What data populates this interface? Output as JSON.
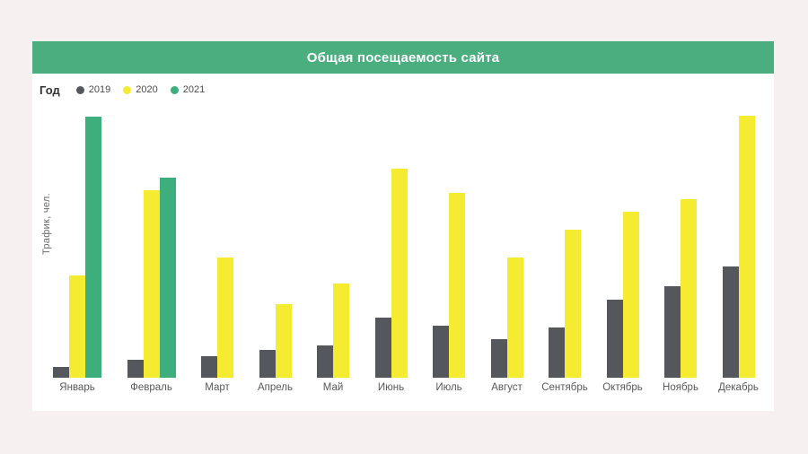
{
  "page": {
    "background": "#f6f1f0"
  },
  "card": {
    "title": "Общая посещаемость сайта",
    "header_color": "#4bae7e",
    "title_color": "#ffffff",
    "background": "#ffffff"
  },
  "legend": {
    "title": "Год",
    "items": [
      {
        "label": "2019",
        "color": "#54585d"
      },
      {
        "label": "2020",
        "color": "#f5ec32"
      },
      {
        "label": "2021",
        "color": "#3fae7d"
      }
    ]
  },
  "chart_data": {
    "type": "bar",
    "title": "Общая посещаемость сайта",
    "xlabel": "",
    "ylabel": "Трафик, чел.",
    "categories": [
      "Январь",
      "Февраль",
      "Март",
      "Апрель",
      "Май",
      "Июнь",
      "Июль",
      "Август",
      "Сентябрь",
      "Октябрь",
      "Ноябрь",
      "Декабрь"
    ],
    "series": [
      {
        "name": "2019",
        "color": "#54585d",
        "values": [
          12,
          20,
          24,
          31,
          36,
          67,
          58,
          43,
          56,
          87,
          102,
          124
        ]
      },
      {
        "name": "2020",
        "color": "#f5ec32",
        "values": [
          114,
          209,
          134,
          82,
          105,
          233,
          206,
          134,
          165,
          185,
          199,
          292
        ]
      },
      {
        "name": "2021",
        "color": "#3fae7d",
        "values": [
          291,
          223,
          null,
          null,
          null,
          null,
          null,
          null,
          null,
          null,
          null,
          null
        ]
      }
    ],
    "value_units": "relative units (no y-axis tick labels shown in chart)",
    "ylim": [
      0,
      307
    ],
    "grid": false,
    "axis_ticks": "none",
    "legend_position": "top-left"
  }
}
